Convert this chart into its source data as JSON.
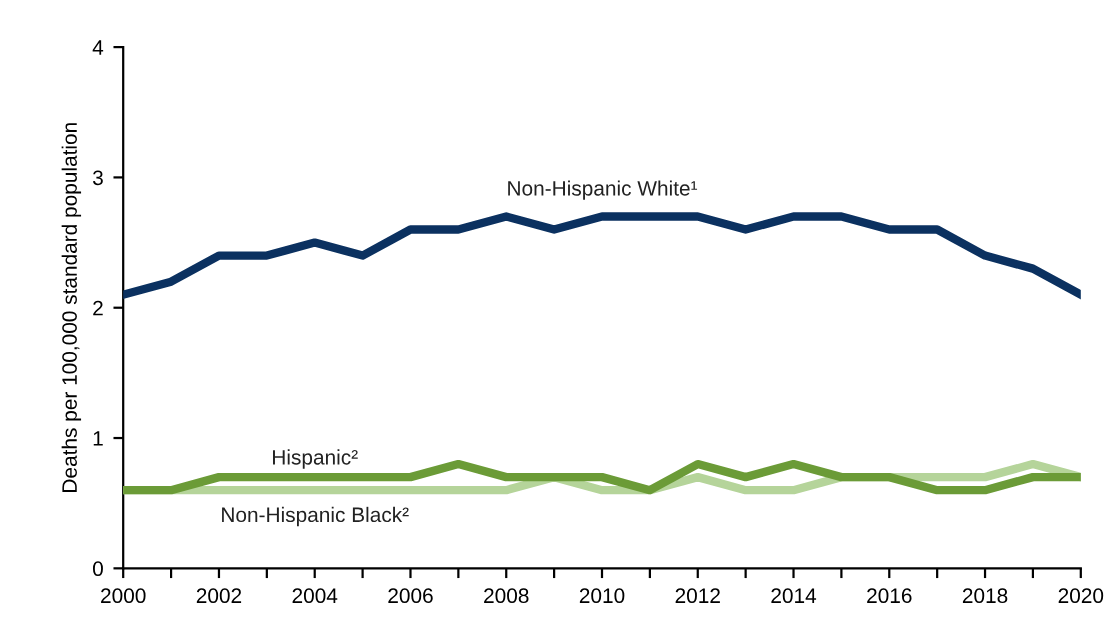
{
  "chart_data": {
    "type": "line",
    "ylabel": "Deaths per 100,000 standard population",
    "x": [
      2000,
      2001,
      2002,
      2003,
      2004,
      2005,
      2006,
      2007,
      2008,
      2009,
      2010,
      2011,
      2012,
      2013,
      2014,
      2015,
      2016,
      2017,
      2018,
      2019,
      2020
    ],
    "series": [
      {
        "name": "Non-Hispanic White¹",
        "color": "#0b3160",
        "values": [
          2.1,
          2.2,
          2.4,
          2.4,
          2.5,
          2.4,
          2.6,
          2.6,
          2.7,
          2.6,
          2.7,
          2.7,
          2.7,
          2.6,
          2.7,
          2.7,
          2.6,
          2.6,
          2.4,
          2.3,
          2.1
        ]
      },
      {
        "name": "Hispanic²",
        "color": "#6b9b37",
        "values": [
          0.6,
          0.6,
          0.7,
          0.7,
          0.7,
          0.7,
          0.7,
          0.8,
          0.7,
          0.7,
          0.7,
          0.6,
          0.8,
          0.7,
          0.8,
          0.7,
          0.7,
          0.6,
          0.6,
          0.7,
          0.7
        ]
      },
      {
        "name": "Non-Hispanic Black²",
        "color": "#b5d49a",
        "values": [
          0.6,
          0.6,
          0.6,
          0.6,
          0.6,
          0.6,
          0.6,
          0.6,
          0.6,
          0.7,
          0.6,
          0.6,
          0.7,
          0.6,
          0.6,
          0.7,
          0.7,
          0.7,
          0.7,
          0.8,
          0.7
        ]
      }
    ],
    "xlim": [
      2000,
      2020
    ],
    "xticks": [
      2000,
      {
        "value": 2001,
        "label": null
      },
      2002,
      {
        "value": 2003,
        "label": null
      },
      2004,
      {
        "value": 2005,
        "label": null
      },
      2006,
      {
        "value": 2007,
        "label": null
      },
      2008,
      {
        "value": 2009,
        "label": null
      },
      2010,
      {
        "value": 2011,
        "label": null
      },
      2012,
      {
        "value": 2013,
        "label": null
      },
      2014,
      {
        "value": 2015,
        "label": null
      },
      2016,
      {
        "value": 2017,
        "label": null
      },
      2018,
      {
        "value": 2019,
        "label": null
      },
      2020
    ],
    "ylim": [
      0,
      4
    ],
    "yticks": [
      0,
      1,
      2,
      3,
      4
    ],
    "grid": false,
    "legend": false,
    "marker": "none",
    "line_style": "solid"
  }
}
